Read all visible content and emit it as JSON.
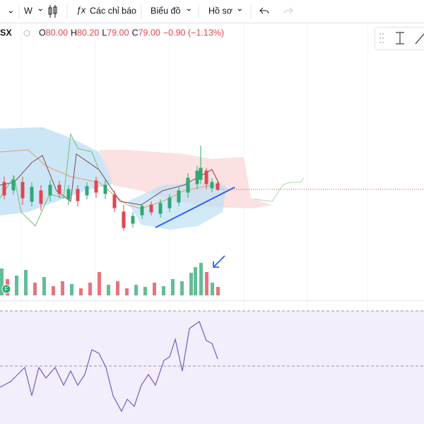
{
  "toolbar": {
    "interval": "W",
    "indicators": "Các chỉ báo",
    "chart_type": "Biểu đồ",
    "profile": "Hồ sơ"
  },
  "legend": {
    "symbol": "SX",
    "ohlc": [
      {
        "label": "O",
        "value": "80.00"
      },
      {
        "label": "H",
        "value": "80.20"
      },
      {
        "label": "L",
        "value": "79.00"
      },
      {
        "label": "C",
        "value": "79.00"
      }
    ],
    "change": "−0.90 (−1.13%)"
  }
}
